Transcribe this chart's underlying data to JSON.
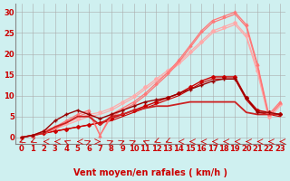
{
  "background_color": "#cff0f0",
  "grid_color": "#aaaaaa",
  "xlabel": "Vent moyen/en rafales ( km/h )",
  "xlabel_color": "#cc0000",
  "xlabel_fontsize": 7,
  "tick_color": "#cc0000",
  "tick_fontsize": 6,
  "xlim": [
    -0.5,
    23.5
  ],
  "ylim": [
    -1.5,
    32
  ],
  "yticks": [
    0,
    5,
    10,
    15,
    20,
    25,
    30
  ],
  "xticks": [
    0,
    1,
    2,
    3,
    4,
    5,
    6,
    7,
    8,
    9,
    10,
    11,
    12,
    13,
    14,
    15,
    16,
    17,
    18,
    19,
    20,
    21,
    22,
    23
  ],
  "series": [
    {
      "x": [
        0,
        1,
        2,
        3,
        4,
        5,
        6,
        7,
        8,
        9,
        10,
        11,
        12,
        13,
        14,
        15,
        16,
        17,
        18,
        19,
        20,
        21,
        22,
        23
      ],
      "y": [
        0.0,
        0.5,
        1.0,
        1.5,
        2.0,
        2.5,
        3.0,
        3.5,
        4.5,
        5.5,
        6.5,
        7.5,
        8.5,
        9.5,
        10.5,
        12.0,
        13.5,
        14.5,
        14.5,
        14.5,
        9.5,
        6.5,
        6.0,
        5.5
      ],
      "color": "#cc0000",
      "linewidth": 1.0,
      "marker": "D",
      "markersize": 2.0,
      "alpha": 1.0
    },
    {
      "x": [
        0,
        1,
        2,
        3,
        4,
        5,
        6,
        7,
        8,
        9,
        10,
        11,
        12,
        13,
        14,
        15,
        16,
        17,
        18,
        19,
        20,
        21,
        22,
        23
      ],
      "y": [
        0.0,
        0.5,
        1.0,
        1.5,
        2.0,
        2.5,
        3.0,
        3.5,
        4.0,
        5.0,
        6.0,
        7.0,
        8.0,
        9.0,
        10.0,
        11.5,
        13.0,
        14.0,
        14.0,
        14.0,
        9.0,
        6.0,
        5.5,
        5.0
      ],
      "color": "#cc0000",
      "linewidth": 0.8,
      "marker": null,
      "markersize": 0,
      "alpha": 1.0
    },
    {
      "x": [
        0,
        1,
        2,
        3,
        4,
        5,
        6,
        7,
        8,
        9,
        10,
        11,
        12,
        13,
        14,
        15,
        16,
        17,
        18,
        19,
        20,
        21,
        22,
        23
      ],
      "y": [
        0.0,
        0.5,
        1.5,
        2.5,
        3.5,
        4.5,
        5.5,
        6.0,
        7.0,
        8.5,
        10.0,
        12.0,
        14.0,
        16.0,
        18.0,
        20.5,
        23.0,
        25.5,
        26.5,
        27.5,
        24.5,
        16.0,
        5.0,
        8.0
      ],
      "color": "#ffaaaa",
      "linewidth": 0.9,
      "marker": "D",
      "markersize": 2.0,
      "alpha": 1.0
    },
    {
      "x": [
        0,
        1,
        2,
        3,
        4,
        5,
        6,
        7,
        8,
        9,
        10,
        11,
        12,
        13,
        14,
        15,
        16,
        17,
        18,
        19,
        20,
        21,
        22,
        23
      ],
      "y": [
        0.0,
        0.5,
        1.0,
        2.0,
        3.0,
        4.0,
        5.0,
        5.5,
        6.5,
        8.0,
        9.5,
        11.5,
        13.5,
        15.5,
        17.5,
        20.0,
        22.5,
        25.0,
        26.0,
        27.0,
        24.0,
        15.5,
        4.5,
        7.5
      ],
      "color": "#ffaaaa",
      "linewidth": 0.9,
      "marker": null,
      "markersize": 0,
      "alpha": 1.0
    },
    {
      "x": [
        0,
        1,
        2,
        3,
        4,
        5,
        6,
        7,
        8,
        9,
        10,
        11,
        12,
        13,
        14,
        15,
        16,
        17,
        18,
        19,
        20,
        21,
        22,
        23
      ],
      "y": [
        0.0,
        0.5,
        1.5,
        2.5,
        4.0,
        5.5,
        6.5,
        0.5,
        5.5,
        7.0,
        8.5,
        10.5,
        13.0,
        15.5,
        18.5,
        22.0,
        25.5,
        28.0,
        29.0,
        30.0,
        27.0,
        17.5,
        5.5,
        8.5
      ],
      "color": "#ff7777",
      "linewidth": 0.9,
      "marker": "^",
      "markersize": 2.0,
      "alpha": 1.0
    },
    {
      "x": [
        0,
        1,
        2,
        3,
        4,
        5,
        6,
        7,
        8,
        9,
        10,
        11,
        12,
        13,
        14,
        15,
        16,
        17,
        18,
        19,
        20,
        21,
        22,
        23
      ],
      "y": [
        0.0,
        0.5,
        1.0,
        2.0,
        3.5,
        5.0,
        6.0,
        0.5,
        5.0,
        6.5,
        8.0,
        10.0,
        12.5,
        15.0,
        18.0,
        21.5,
        25.0,
        27.5,
        28.5,
        29.5,
        26.5,
        17.0,
        5.0,
        8.0
      ],
      "color": "#ff7777",
      "linewidth": 0.9,
      "marker": null,
      "markersize": 0,
      "alpha": 1.0
    },
    {
      "x": [
        0,
        1,
        2,
        3,
        4,
        5,
        6,
        7,
        8,
        9,
        10,
        11,
        12,
        13,
        14,
        15,
        16,
        17,
        18,
        19,
        20,
        21,
        22,
        23
      ],
      "y": [
        0.0,
        0.5,
        1.0,
        2.5,
        3.5,
        5.0,
        5.0,
        3.0,
        5.0,
        5.5,
        6.5,
        7.0,
        7.5,
        7.5,
        8.0,
        8.5,
        8.5,
        8.5,
        8.5,
        8.5,
        6.0,
        5.5,
        5.5,
        5.5
      ],
      "color": "#cc2222",
      "linewidth": 1.3,
      "marker": null,
      "markersize": 0,
      "alpha": 1.0
    },
    {
      "x": [
        0,
        1,
        2,
        3,
        4,
        5,
        6,
        7,
        8,
        9,
        10,
        11,
        12,
        13,
        14,
        15,
        16,
        17,
        18,
        19,
        20,
        21,
        22,
        23
      ],
      "y": [
        0.0,
        0.5,
        1.5,
        4.0,
        5.5,
        6.5,
        5.5,
        4.5,
        5.5,
        6.5,
        7.5,
        8.5,
        9.0,
        9.5,
        10.5,
        11.5,
        12.5,
        13.5,
        14.0,
        14.0,
        9.5,
        6.0,
        6.0,
        5.5
      ],
      "color": "#990000",
      "linewidth": 1.0,
      "marker": "+",
      "markersize": 3,
      "alpha": 1.0
    }
  ],
  "arrow_directions": [
    225,
    225,
    270,
    270,
    315,
    270,
    45,
    90,
    45,
    45,
    45,
    315,
    225,
    225,
    270,
    270,
    270,
    270,
    270,
    270,
    270,
    270,
    270,
    270
  ],
  "arrow_color": "#cc0000"
}
